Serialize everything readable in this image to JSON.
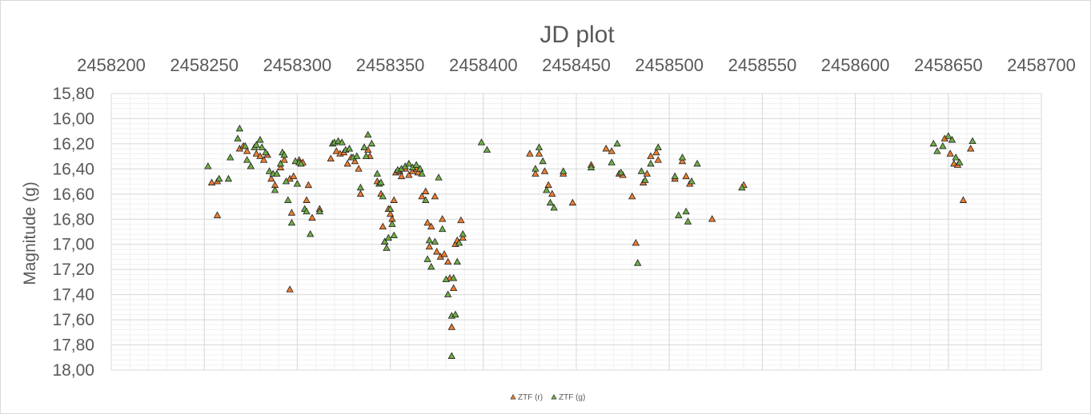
{
  "chart_data": {
    "type": "scatter",
    "title": "JD plot",
    "xlabel": "",
    "ylabel": "Magnitude (g)",
    "xlim": [
      2458200,
      2458700
    ],
    "ylim": [
      15.8,
      18.0
    ],
    "y_reversed": true,
    "x_axis_position": "top",
    "x_ticks": [
      "2458200",
      "2458250",
      "2458300",
      "2458350",
      "2458400",
      "2458450",
      "2458500",
      "2458550",
      "2458600",
      "2458650",
      "2458700"
    ],
    "y_ticks": [
      "15,80",
      "16,00",
      "16,20",
      "16,40",
      "16,60",
      "16,80",
      "17,00",
      "17,20",
      "17,40",
      "17,60",
      "17,80",
      "18,00"
    ],
    "grid": true,
    "legend_position": "bottom",
    "series": [
      {
        "name": "ZTF (r)",
        "color": "#ed7d31",
        "marker": "triangle",
        "points": [
          [
            2458254,
            16.51
          ],
          [
            2458257,
            16.5
          ],
          [
            2458257,
            16.77
          ],
          [
            2458269,
            16.24
          ],
          [
            2458271,
            16.22
          ],
          [
            2458273,
            16.26
          ],
          [
            2458275,
            16.38
          ],
          [
            2458278,
            16.28
          ],
          [
            2458280,
            16.3
          ],
          [
            2458282,
            16.33
          ],
          [
            2458284,
            16.29
          ],
          [
            2458286,
            16.48
          ],
          [
            2458288,
            16.53
          ],
          [
            2458291,
            16.39
          ],
          [
            2458293,
            16.33
          ],
          [
            2458296,
            16.48
          ],
          [
            2458297,
            16.75
          ],
          [
            2458298,
            16.46
          ],
          [
            2458300,
            16.52
          ],
          [
            2458301,
            16.33
          ],
          [
            2458303,
            16.35
          ],
          [
            2458305,
            16.65
          ],
          [
            2458306,
            16.53
          ],
          [
            2458308,
            16.79
          ],
          [
            2458296,
            17.36
          ],
          [
            2458312,
            16.72
          ],
          [
            2458318,
            16.32
          ],
          [
            2458321,
            16.26
          ],
          [
            2458323,
            16.28
          ],
          [
            2458325,
            16.27
          ],
          [
            2458327,
            16.36
          ],
          [
            2458329,
            16.31
          ],
          [
            2458331,
            16.34
          ],
          [
            2458333,
            16.4
          ],
          [
            2458334,
            16.6
          ],
          [
            2458336,
            16.23
          ],
          [
            2458338,
            16.25
          ],
          [
            2458339,
            16.3
          ],
          [
            2458343,
            16.5
          ],
          [
            2458345,
            16.6
          ],
          [
            2458346,
            16.86
          ],
          [
            2458347,
            16.98
          ],
          [
            2458349,
            16.72
          ],
          [
            2458350,
            16.76
          ],
          [
            2458351,
            16.8
          ],
          [
            2458352,
            16.65
          ],
          [
            2458353,
            16.43
          ],
          [
            2458355,
            16.42
          ],
          [
            2458356,
            16.46
          ],
          [
            2458358,
            16.4
          ],
          [
            2458360,
            16.45
          ],
          [
            2458362,
            16.42
          ],
          [
            2458364,
            16.4
          ],
          [
            2458365,
            16.43
          ],
          [
            2458367,
            16.62
          ],
          [
            2458369,
            16.58
          ],
          [
            2458370,
            16.83
          ],
          [
            2458371,
            17.02
          ],
          [
            2458372,
            16.86
          ],
          [
            2458374,
            16.62
          ],
          [
            2458375,
            17.06
          ],
          [
            2458377,
            17.1
          ],
          [
            2458378,
            16.8
          ],
          [
            2458379,
            17.08
          ],
          [
            2458381,
            17.14
          ],
          [
            2458382,
            17.27
          ],
          [
            2458383,
            17.66
          ],
          [
            2458384,
            17.35
          ],
          [
            2458385,
            17.0
          ],
          [
            2458386,
            16.97
          ],
          [
            2458388,
            16.81
          ],
          [
            2458389,
            16.95
          ],
          [
            2458425,
            16.28
          ],
          [
            2458428,
            16.44
          ],
          [
            2458430,
            16.28
          ],
          [
            2458433,
            16.42
          ],
          [
            2458435,
            16.53
          ],
          [
            2458437,
            16.6
          ],
          [
            2458443,
            16.44
          ],
          [
            2458448,
            16.67
          ],
          [
            2458458,
            16.37
          ],
          [
            2458466,
            16.24
          ],
          [
            2458469,
            16.26
          ],
          [
            2458473,
            16.44
          ],
          [
            2458475,
            16.45
          ],
          [
            2458480,
            16.62
          ],
          [
            2458482,
            16.99
          ],
          [
            2458486,
            16.51
          ],
          [
            2458488,
            16.44
          ],
          [
            2458490,
            16.3
          ],
          [
            2458493,
            16.27
          ],
          [
            2458494,
            16.33
          ],
          [
            2458503,
            16.48
          ],
          [
            2458507,
            16.34
          ],
          [
            2458509,
            16.46
          ],
          [
            2458511,
            16.52
          ],
          [
            2458523,
            16.8
          ],
          [
            2458540,
            16.53
          ],
          [
            2458648,
            16.16
          ],
          [
            2458651,
            16.28
          ],
          [
            2458653,
            16.36
          ],
          [
            2458655,
            16.37
          ],
          [
            2458658,
            16.65
          ],
          [
            2458662,
            16.24
          ]
        ]
      },
      {
        "name": "ZTF (g)",
        "color": "#70ad47",
        "marker": "triangle",
        "points": [
          [
            2458252,
            16.38
          ],
          [
            2458258,
            16.48
          ],
          [
            2458263,
            16.48
          ],
          [
            2458264,
            16.31
          ],
          [
            2458268,
            16.16
          ],
          [
            2458269,
            16.08
          ],
          [
            2458272,
            16.22
          ],
          [
            2458273,
            16.33
          ],
          [
            2458275,
            16.38
          ],
          [
            2458277,
            16.23
          ],
          [
            2458278,
            16.21
          ],
          [
            2458280,
            16.17
          ],
          [
            2458281,
            16.23
          ],
          [
            2458283,
            16.27
          ],
          [
            2458285,
            16.42
          ],
          [
            2458287,
            16.44
          ],
          [
            2458288,
            16.57
          ],
          [
            2458289,
            16.44
          ],
          [
            2458291,
            16.36
          ],
          [
            2458292,
            16.27
          ],
          [
            2458293,
            16.29
          ],
          [
            2458294,
            16.5
          ],
          [
            2458295,
            16.65
          ],
          [
            2458297,
            16.83
          ],
          [
            2458299,
            16.34
          ],
          [
            2458300,
            16.52
          ],
          [
            2458301,
            16.35
          ],
          [
            2458302,
            16.36
          ],
          [
            2458304,
            16.72
          ],
          [
            2458305,
            16.74
          ],
          [
            2458307,
            16.92
          ],
          [
            2458312,
            16.74
          ],
          [
            2458319,
            16.2
          ],
          [
            2458320,
            16.19
          ],
          [
            2458322,
            16.18
          ],
          [
            2458324,
            16.19
          ],
          [
            2458326,
            16.25
          ],
          [
            2458328,
            16.24
          ],
          [
            2458330,
            16.31
          ],
          [
            2458332,
            16.3
          ],
          [
            2458334,
            16.55
          ],
          [
            2458336,
            16.23
          ],
          [
            2458337,
            16.3
          ],
          [
            2458338,
            16.13
          ],
          [
            2458340,
            16.2
          ],
          [
            2458343,
            16.44
          ],
          [
            2458344,
            16.52
          ],
          [
            2458345,
            16.51
          ],
          [
            2458346,
            16.62
          ],
          [
            2458347,
            16.98
          ],
          [
            2458348,
            17.03
          ],
          [
            2458349,
            16.95
          ],
          [
            2458350,
            16.72
          ],
          [
            2458351,
            16.84
          ],
          [
            2458352,
            16.93
          ],
          [
            2458354,
            16.41
          ],
          [
            2458356,
            16.4
          ],
          [
            2458358,
            16.38
          ],
          [
            2458360,
            16.36
          ],
          [
            2458362,
            16.39
          ],
          [
            2458364,
            16.37
          ],
          [
            2458366,
            16.4
          ],
          [
            2458367,
            16.44
          ],
          [
            2458369,
            16.65
          ],
          [
            2458370,
            17.12
          ],
          [
            2458371,
            16.97
          ],
          [
            2458372,
            17.18
          ],
          [
            2458374,
            16.98
          ],
          [
            2458376,
            16.47
          ],
          [
            2458378,
            16.88
          ],
          [
            2458380,
            17.28
          ],
          [
            2458381,
            17.4
          ],
          [
            2458383,
            17.57
          ],
          [
            2458384,
            17.27
          ],
          [
            2458385,
            17.56
          ],
          [
            2458386,
            17.14
          ],
          [
            2458387,
            16.99
          ],
          [
            2458389,
            16.92
          ],
          [
            2458383,
            17.89
          ],
          [
            2458399,
            16.19
          ],
          [
            2458402,
            16.25
          ],
          [
            2458428,
            16.4
          ],
          [
            2458430,
            16.23
          ],
          [
            2458432,
            16.34
          ],
          [
            2458434,
            16.57
          ],
          [
            2458436,
            16.67
          ],
          [
            2458438,
            16.71
          ],
          [
            2458443,
            16.42
          ],
          [
            2458458,
            16.39
          ],
          [
            2458469,
            16.35
          ],
          [
            2458472,
            16.2
          ],
          [
            2458474,
            16.43
          ],
          [
            2458485,
            16.42
          ],
          [
            2458487,
            16.49
          ],
          [
            2458490,
            16.36
          ],
          [
            2458494,
            16.23
          ],
          [
            2458483,
            17.15
          ],
          [
            2458503,
            16.46
          ],
          [
            2458505,
            16.77
          ],
          [
            2458507,
            16.31
          ],
          [
            2458509,
            16.74
          ],
          [
            2458510,
            16.82
          ],
          [
            2458512,
            16.5
          ],
          [
            2458515,
            16.36
          ],
          [
            2458539,
            16.55
          ],
          [
            2458642,
            16.2
          ],
          [
            2458644,
            16.26
          ],
          [
            2458647,
            16.22
          ],
          [
            2458650,
            16.14
          ],
          [
            2458652,
            16.17
          ],
          [
            2458654,
            16.31
          ],
          [
            2458656,
            16.35
          ],
          [
            2458663,
            16.18
          ]
        ]
      }
    ]
  }
}
